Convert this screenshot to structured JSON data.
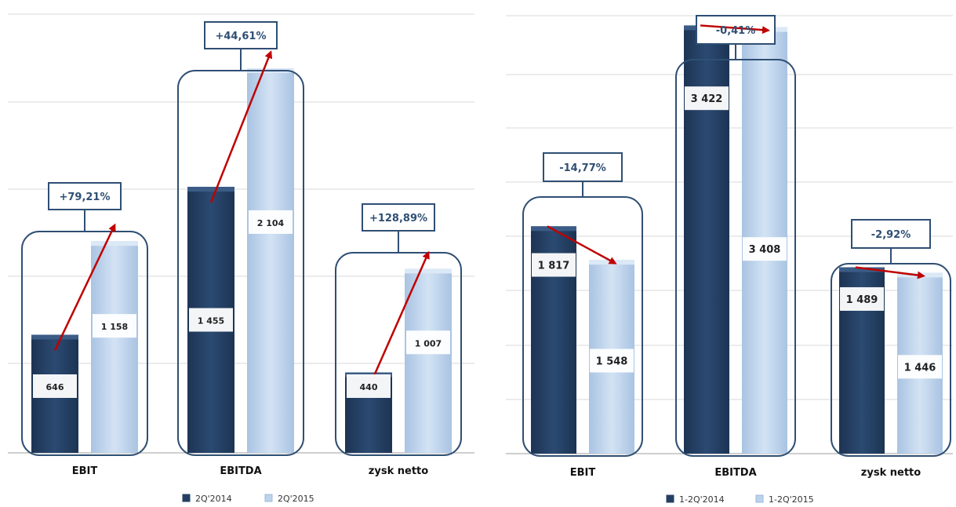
{
  "chart_data": [
    {
      "type": "bar",
      "categories": [
        "EBIT",
        "EBITDA",
        "zysk netto"
      ],
      "series": [
        {
          "name": "2Q'2014",
          "values": [
            646,
            1455,
            440
          ]
        },
        {
          "name": "2Q'2015",
          "values": [
            1158,
            2104,
            1007
          ]
        }
      ],
      "value_labels": [
        [
          "646",
          "1 455",
          "440"
        ],
        [
          "1 158",
          "2 104",
          "1 007"
        ]
      ],
      "change_labels": [
        "+79,21%",
        "+44,61%",
        "+128,89%"
      ],
      "ylim": [
        0,
        2400
      ],
      "grid": true,
      "legend_position": "bottom",
      "colors": [
        "#243f63",
        "#bcd3ec"
      ]
    },
    {
      "type": "bar",
      "categories": [
        "EBIT",
        "EBITDA",
        "zysk netto"
      ],
      "series": [
        {
          "name": "1-2Q'2014",
          "values": [
            1817,
            3422,
            1489
          ]
        },
        {
          "name": "1-2Q'2015",
          "values": [
            1548,
            3408,
            1446
          ]
        }
      ],
      "value_labels": [
        [
          "1 817",
          "3 422",
          "1 489"
        ],
        [
          "1 548",
          "3 408",
          "1 446"
        ]
      ],
      "change_labels": [
        "-14,77%",
        "-0,41%",
        "-2,92%"
      ],
      "ylim": [
        0,
        3500
      ],
      "grid": true,
      "legend_position": "bottom",
      "colors": [
        "#243f63",
        "#bcd3ec"
      ]
    }
  ],
  "colors": {
    "dark_bar": "#243f63",
    "light_bar": "#bcd3ec",
    "frame": "#2f4f74",
    "arrow": "#c00000",
    "change_text": "#2f4f74"
  }
}
